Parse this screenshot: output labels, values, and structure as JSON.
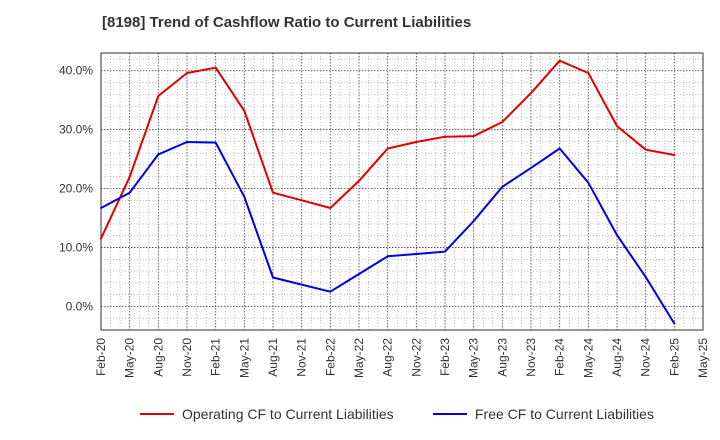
{
  "chart_data": {
    "type": "line",
    "title": "[8198]  Trend of Cashflow Ratio to Current Liabilities",
    "xlabel": "",
    "ylabel": "",
    "x": [
      "Feb-20",
      "May-20",
      "Aug-20",
      "Nov-20",
      "Feb-21",
      "May-21",
      "Aug-21",
      "Nov-21",
      "Feb-22",
      "May-22",
      "Aug-22",
      "Nov-22",
      "Feb-23",
      "May-23",
      "Aug-23",
      "Nov-23",
      "Feb-24",
      "May-24",
      "Aug-24",
      "Nov-24",
      "Feb-25",
      "May-25"
    ],
    "ylim": [
      -4,
      43
    ],
    "yticks": [
      0,
      10,
      20,
      30,
      40
    ],
    "ytick_labels": [
      "0.0%",
      "10.0%",
      "20.0%",
      "30.0%",
      "40.0%"
    ],
    "grid": true,
    "legend_position": "bottom",
    "series": [
      {
        "name": "Operating CF to Current Liabilities",
        "color": "#e00000",
        "values": [
          11.5,
          22.0,
          35.7,
          39.6,
          40.5,
          33.2,
          19.3,
          18.0,
          16.7,
          21.3,
          26.8,
          27.9,
          28.8,
          28.9,
          31.3,
          36.2,
          41.7,
          39.6,
          30.6,
          26.6,
          25.7,
          null
        ]
      },
      {
        "name": "Free CF to Current Liabilities",
        "color": "#0000e0",
        "values": [
          16.7,
          19.3,
          25.8,
          27.9,
          27.8,
          18.6,
          4.9,
          3.7,
          2.5,
          5.5,
          8.5,
          8.9,
          9.3,
          14.5,
          20.3,
          23.5,
          26.8,
          21.0,
          12.1,
          5.0,
          -2.9,
          null
        ]
      }
    ]
  }
}
